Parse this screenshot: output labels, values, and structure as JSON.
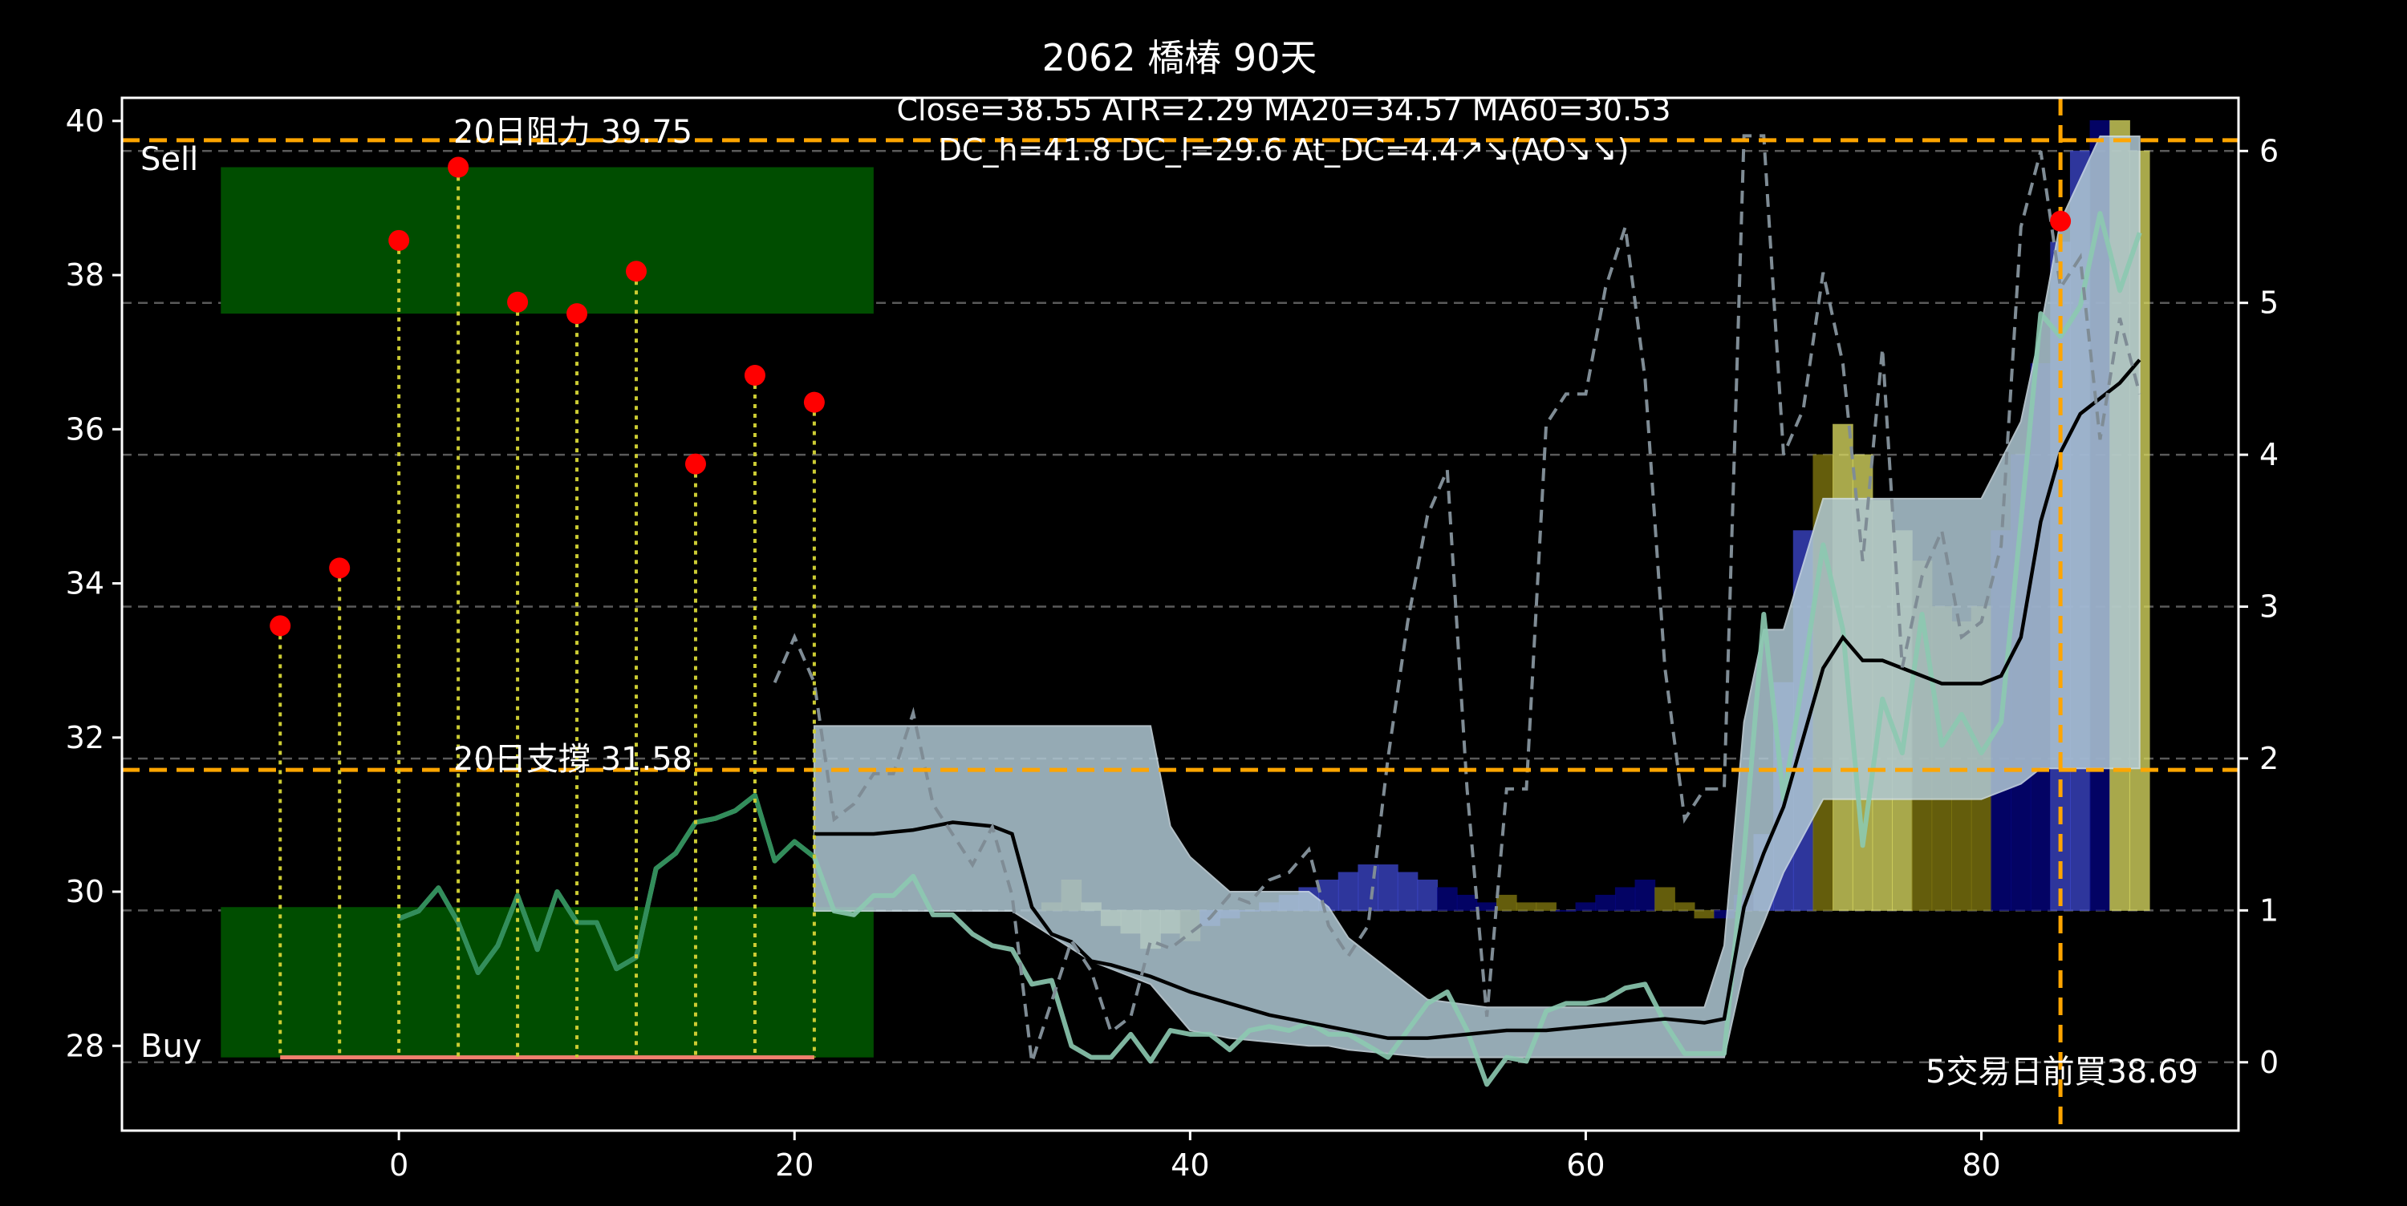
{
  "chart_data": {
    "type": "line",
    "title": "2062 橋椿 90天",
    "info_line1": "Close=38.55 ATR=2.29 MA20=34.57 MA60=30.53",
    "info_line2": "DC_h=41.8 DC_l=29.6 At_DC=4.4↗↘(AO↘↘)",
    "xlim": [
      -14,
      93
    ],
    "ylim": [
      26.9,
      40.3
    ],
    "y2lim": [
      -0.45,
      6.35
    ],
    "x_ticks": [
      0,
      20,
      40,
      60,
      80
    ],
    "y_ticks": [
      28,
      30,
      32,
      34,
      36,
      38,
      40
    ],
    "y2_ticks": [
      0,
      1,
      2,
      3,
      4,
      5,
      6
    ],
    "grid": "dashed-right-axis",
    "colors": {
      "background": "#000000",
      "zone": "#004d00",
      "level_line": "#ffa500",
      "dot": "#ff0000",
      "stem": "#cccc33",
      "band": "#b0c8d4",
      "price": "#8cc9b0",
      "price_early": "#2e8b57",
      "ma": "#000000",
      "atr": "#7f8c95",
      "buy_line": "#f08070",
      "hist_blue": "#3c46c8",
      "hist_navy": "#050580",
      "hist_yellow": "#d8d860",
      "hist_olive": "#807810"
    },
    "zones": [
      {
        "label": "Sell",
        "x": [
          -9,
          24
        ],
        "y": [
          37.5,
          39.4
        ]
      },
      {
        "label": "Buy",
        "x": [
          -9,
          24
        ],
        "y": [
          27.85,
          29.8
        ]
      }
    ],
    "levels": [
      {
        "label": "20日阻力 39.75",
        "y": 39.75
      },
      {
        "label": "20日支撐 31.58",
        "y": 31.58
      }
    ],
    "vline": {
      "x": 84,
      "label": "5交易日前買38.69"
    },
    "buy_line": {
      "x": [
        -6,
        21
      ],
      "y": 27.85
    },
    "pivots": {
      "x": [
        -6,
        -3,
        0,
        3,
        6,
        9,
        12,
        15,
        18,
        21,
        84
      ],
      "y": [
        33.45,
        34.2,
        38.45,
        39.4,
        37.65,
        37.5,
        38.05,
        35.55,
        36.7,
        36.35,
        38.7
      ]
    },
    "band": {
      "x": [
        21,
        30,
        31,
        35,
        38,
        39,
        40,
        42,
        46,
        47,
        48,
        50,
        52,
        55,
        65,
        66,
        67,
        68,
        69,
        70,
        72,
        80,
        82,
        83,
        84,
        86,
        88
      ],
      "upper": [
        32.15,
        32.15,
        32.15,
        32.15,
        32.15,
        30.85,
        30.45,
        30.0,
        30.0,
        29.8,
        29.4,
        29.0,
        28.6,
        28.5,
        28.5,
        28.5,
        29.3,
        32.2,
        33.4,
        33.4,
        35.1,
        35.1,
        36.1,
        37.3,
        38.7,
        39.8,
        39.8
      ],
      "lower": [
        29.75,
        29.75,
        29.75,
        29.1,
        28.8,
        28.5,
        28.2,
        28.1,
        28.0,
        28.0,
        27.95,
        27.9,
        27.85,
        27.85,
        27.85,
        27.85,
        27.85,
        29.0,
        29.6,
        30.25,
        31.2,
        31.2,
        31.4,
        31.6,
        31.6,
        31.6,
        31.6
      ]
    },
    "series": [
      {
        "style": "price",
        "x": [
          0,
          1,
          2,
          3,
          4,
          5,
          6,
          7,
          8,
          9,
          10,
          11,
          12,
          13,
          14,
          15,
          16,
          17,
          18,
          19,
          20,
          21,
          22,
          23,
          24,
          25,
          26,
          27,
          28,
          29,
          30,
          31,
          32,
          33,
          34,
          35,
          36,
          37,
          38,
          39,
          40,
          41,
          42,
          43,
          44,
          45,
          46,
          47,
          48,
          49,
          50,
          51,
          52,
          53,
          54,
          55,
          56,
          57,
          58,
          59,
          60,
          61,
          62,
          63,
          64,
          65,
          66,
          67,
          68,
          69,
          70,
          71,
          72,
          73,
          74,
          75,
          76,
          77,
          78,
          79,
          80,
          81,
          82,
          83,
          84,
          85,
          86,
          87,
          88
        ],
        "y": [
          29.65,
          29.75,
          30.05,
          29.6,
          28.95,
          29.3,
          29.95,
          29.25,
          30.0,
          29.6,
          29.6,
          29.0,
          29.15,
          30.3,
          30.5,
          30.9,
          30.95,
          31.05,
          31.25,
          30.4,
          30.65,
          30.45,
          29.75,
          29.7,
          29.95,
          29.95,
          30.2,
          29.7,
          29.7,
          29.45,
          29.3,
          29.25,
          28.8,
          28.85,
          28.0,
          27.85,
          27.85,
          28.15,
          27.8,
          28.2,
          28.15,
          28.15,
          27.95,
          28.2,
          28.25,
          28.2,
          28.3,
          28.15,
          28.15,
          28.0,
          27.85,
          28.2,
          28.55,
          28.7,
          28.2,
          27.5,
          27.85,
          27.8,
          28.45,
          28.55,
          28.55,
          28.6,
          28.75,
          28.8,
          28.3,
          27.9,
          27.9,
          27.9,
          30.5,
          33.6,
          31.2,
          32.8,
          34.5,
          33.4,
          30.6,
          32.5,
          31.8,
          33.6,
          31.9,
          32.3,
          31.8,
          32.2,
          34.8,
          37.5,
          37.2,
          37.6,
          38.8,
          37.8,
          38.55
        ]
      },
      {
        "style": "ma",
        "x": [
          21,
          24,
          26,
          28,
          30,
          31,
          32,
          33,
          34,
          35,
          36,
          38,
          40,
          42,
          44,
          46,
          48,
          50,
          52,
          54,
          56,
          58,
          60,
          62,
          64,
          66,
          67,
          68,
          69,
          70,
          71,
          72,
          73,
          74,
          75,
          76,
          77,
          78,
          79,
          80,
          81,
          82,
          83,
          84,
          85,
          86,
          87,
          88
        ],
        "y": [
          30.75,
          30.75,
          30.8,
          30.9,
          30.85,
          30.75,
          29.8,
          29.45,
          29.35,
          29.1,
          29.05,
          28.9,
          28.7,
          28.55,
          28.4,
          28.3,
          28.2,
          28.1,
          28.1,
          28.15,
          28.2,
          28.2,
          28.25,
          28.3,
          28.35,
          28.3,
          28.35,
          29.8,
          30.5,
          31.1,
          32.0,
          32.9,
          33.3,
          33.0,
          33.0,
          32.9,
          32.8,
          32.7,
          32.7,
          32.7,
          32.8,
          33.3,
          34.8,
          35.7,
          36.2,
          36.4,
          36.6,
          36.9
        ]
      },
      {
        "style": "atr",
        "axis": "right",
        "x": [
          19,
          20,
          21,
          22,
          23,
          24,
          25,
          26,
          27,
          28,
          29,
          30,
          31,
          32,
          33,
          34,
          35,
          36,
          37,
          38,
          39,
          40,
          41,
          42,
          43,
          44,
          45,
          46,
          47,
          48,
          49,
          50,
          51,
          52,
          53,
          54,
          55,
          56,
          57,
          58,
          59,
          60,
          61,
          62,
          63,
          64,
          65,
          66,
          67,
          68,
          69,
          70,
          71,
          72,
          73,
          74,
          75,
          76,
          77,
          78,
          79,
          80,
          81,
          82,
          83,
          84,
          85,
          86,
          87,
          88
        ],
        "y": [
          2.5,
          2.8,
          2.5,
          1.6,
          1.7,
          1.9,
          1.9,
          2.3,
          1.7,
          1.5,
          1.3,
          1.55,
          1.1,
          0.0,
          0.4,
          0.8,
          0.6,
          0.2,
          0.3,
          0.8,
          0.75,
          0.85,
          0.95,
          1.1,
          1.05,
          1.2,
          1.25,
          1.4,
          0.9,
          0.7,
          0.9,
          2.0,
          2.9,
          3.6,
          3.9,
          1.8,
          0.3,
          1.8,
          1.8,
          4.2,
          4.4,
          4.4,
          5.1,
          5.5,
          4.5,
          2.6,
          1.6,
          1.8,
          1.8,
          6.1,
          6.1,
          4.0,
          4.3,
          5.2,
          4.6,
          3.3,
          4.7,
          2.6,
          3.2,
          3.5,
          2.8,
          2.9,
          3.4,
          5.5,
          6.0,
          5.1,
          5.3,
          4.1,
          4.9,
          4.4
        ]
      }
    ],
    "histogram": {
      "axis": "right",
      "base": 1.0,
      "x": [
        33,
        34,
        35,
        36,
        37,
        38,
        39,
        40,
        41,
        42,
        43,
        44,
        45,
        46,
        47,
        48,
        49,
        50,
        51,
        52,
        53,
        54,
        55,
        56,
        57,
        58,
        59,
        60,
        61,
        62,
        63,
        64,
        65,
        66,
        67,
        68,
        69,
        70,
        71,
        72,
        73,
        74,
        75,
        76,
        77,
        78,
        79,
        80,
        81,
        82,
        83,
        84,
        85,
        86,
        87,
        88
      ],
      "values": [
        0.05,
        0.2,
        0.05,
        -0.1,
        -0.15,
        -0.25,
        -0.15,
        -0.2,
        -0.1,
        -0.05,
        0.0,
        0.05,
        0.1,
        0.15,
        0.2,
        0.25,
        0.3,
        0.3,
        0.25,
        0.2,
        0.15,
        0.1,
        0.05,
        0.1,
        0.05,
        0.05,
        0.0,
        0.05,
        0.1,
        0.15,
        0.2,
        0.15,
        0.05,
        -0.05,
        -0.05,
        0.1,
        0.5,
        1.5,
        2.5,
        3.0,
        3.2,
        3.0,
        2.7,
        2.5,
        2.3,
        2.0,
        1.9,
        2.0,
        2.5,
        3.0,
        3.6,
        4.4,
        5.0,
        5.2,
        5.2,
        5.0
      ],
      "colors": [
        "hist_olive",
        "hist_olive",
        "hist_yellow",
        "hist_yellow",
        "hist_yellow",
        "hist_yellow",
        "hist_yellow",
        "hist_olive",
        "hist_blue",
        "hist_blue",
        "hist_blue",
        "hist_blue",
        "hist_blue",
        "hist_blue",
        "hist_blue",
        "hist_blue",
        "hist_blue",
        "hist_blue",
        "hist_blue",
        "hist_blue",
        "hist_navy",
        "hist_navy",
        "hist_navy",
        "hist_olive",
        "hist_olive",
        "hist_olive",
        "hist_navy",
        "hist_navy",
        "hist_navy",
        "hist_navy",
        "hist_navy",
        "hist_olive",
        "hist_olive",
        "hist_olive",
        "hist_navy",
        "hist_navy",
        "hist_blue",
        "hist_blue",
        "hist_blue",
        "hist_olive",
        "hist_yellow",
        "hist_yellow",
        "hist_yellow",
        "hist_yellow",
        "hist_olive",
        "hist_olive",
        "hist_olive",
        "hist_olive",
        "hist_navy",
        "hist_navy",
        "hist_navy",
        "hist_blue",
        "hist_blue",
        "hist_navy",
        "hist_yellow",
        "hist_yellow"
      ]
    }
  }
}
